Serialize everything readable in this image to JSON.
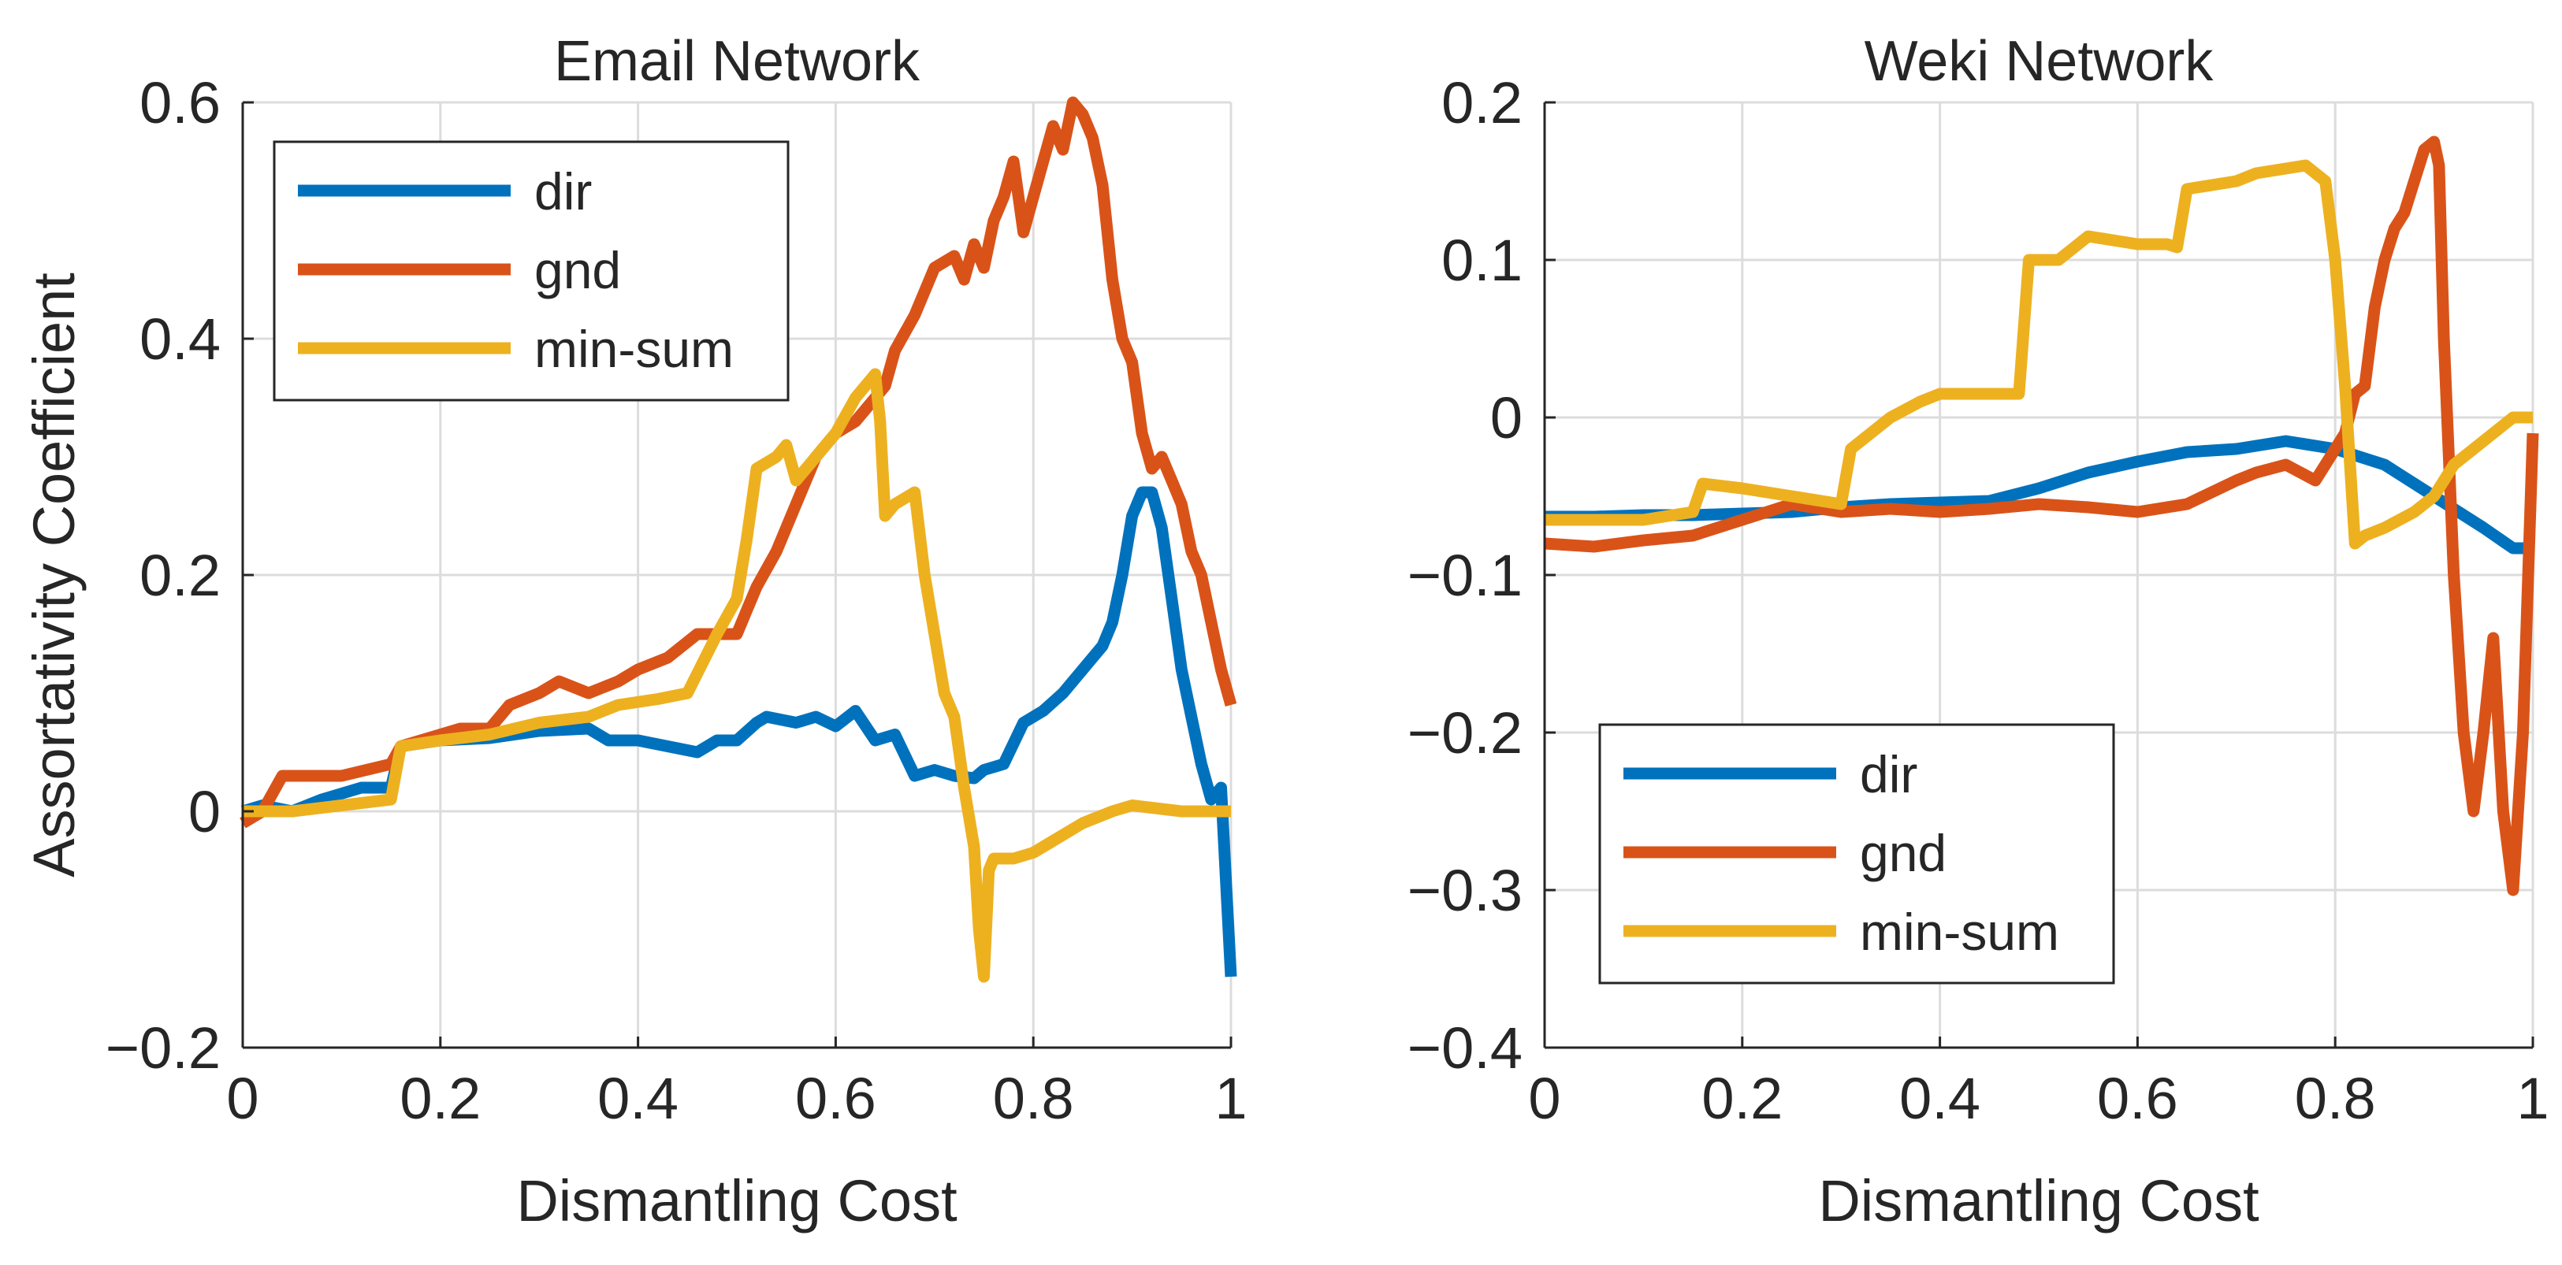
{
  "colors": {
    "dir": "#0072BD",
    "gnd": "#D95319",
    "min-sum": "#EDB120",
    "grid": "#dcdcdc",
    "axis": "#262626"
  },
  "chart_data": [
    {
      "type": "line",
      "title": "Email Network",
      "xlabel": "Dismantling Cost",
      "ylabel": "Assortativity Coefficient",
      "xlim": [
        0,
        1
      ],
      "ylim": [
        -0.2,
        0.6
      ],
      "xticks": [
        0,
        0.2,
        0.4,
        0.6,
        0.8,
        1
      ],
      "yticks": [
        -0.2,
        0,
        0.2,
        0.4,
        0.6
      ],
      "xtick_labels": [
        "0",
        "0.2",
        "0.4",
        "0.6",
        "0.8",
        "1"
      ],
      "ytick_labels": [
        "−0.2",
        "0",
        "0.2",
        "0.4",
        "0.6"
      ],
      "grid": true,
      "legend": "top-left",
      "series": [
        {
          "name": "dir",
          "key": "dir",
          "x": [
            0,
            0.02,
            0.05,
            0.08,
            0.1,
            0.12,
            0.15,
            0.16,
            0.2,
            0.25,
            0.3,
            0.35,
            0.37,
            0.4,
            0.43,
            0.46,
            0.48,
            0.5,
            0.52,
            0.53,
            0.56,
            0.58,
            0.6,
            0.62,
            0.64,
            0.66,
            0.68,
            0.7,
            0.72,
            0.74,
            0.75,
            0.77,
            0.79,
            0.81,
            0.83,
            0.85,
            0.87,
            0.88,
            0.89,
            0.9,
            0.91,
            0.92,
            0.93,
            0.94,
            0.95,
            0.96,
            0.97,
            0.98,
            0.99,
            1.0
          ],
          "values": [
            0,
            0.005,
            0,
            0.01,
            0.015,
            0.02,
            0.02,
            0.055,
            0.06,
            0.062,
            0.068,
            0.07,
            0.06,
            0.06,
            0.055,
            0.05,
            0.06,
            0.06,
            0.075,
            0.08,
            0.075,
            0.08,
            0.072,
            0.085,
            0.06,
            0.065,
            0.03,
            0.035,
            0.03,
            0.028,
            0.035,
            0.04,
            0.075,
            0.085,
            0.1,
            0.12,
            0.14,
            0.16,
            0.2,
            0.25,
            0.27,
            0.27,
            0.24,
            0.18,
            0.12,
            0.08,
            0.04,
            0.01,
            0.02,
            -0.14
          ]
        },
        {
          "name": "gnd",
          "key": "gnd",
          "x": [
            0,
            0.02,
            0.04,
            0.06,
            0.1,
            0.15,
            0.16,
            0.2,
            0.22,
            0.25,
            0.27,
            0.3,
            0.32,
            0.35,
            0.38,
            0.4,
            0.43,
            0.46,
            0.48,
            0.5,
            0.51,
            0.52,
            0.54,
            0.56,
            0.58,
            0.6,
            0.62,
            0.64,
            0.65,
            0.66,
            0.68,
            0.7,
            0.72,
            0.73,
            0.74,
            0.75,
            0.76,
            0.77,
            0.78,
            0.79,
            0.8,
            0.81,
            0.82,
            0.83,
            0.84,
            0.85,
            0.86,
            0.87,
            0.88,
            0.89,
            0.9,
            0.91,
            0.92,
            0.93,
            0.94,
            0.95,
            0.96,
            0.97,
            0.98,
            0.99,
            1.0
          ],
          "values": [
            -0.01,
            0,
            0.03,
            0.03,
            0.03,
            0.04,
            0.055,
            0.065,
            0.07,
            0.07,
            0.09,
            0.1,
            0.11,
            0.1,
            0.11,
            0.12,
            0.13,
            0.15,
            0.15,
            0.15,
            0.17,
            0.19,
            0.22,
            0.26,
            0.3,
            0.32,
            0.33,
            0.35,
            0.36,
            0.39,
            0.42,
            0.46,
            0.47,
            0.45,
            0.48,
            0.46,
            0.5,
            0.52,
            0.55,
            0.49,
            0.52,
            0.55,
            0.58,
            0.56,
            0.6,
            0.59,
            0.57,
            0.53,
            0.45,
            0.4,
            0.38,
            0.32,
            0.29,
            0.3,
            0.28,
            0.26,
            0.22,
            0.2,
            0.16,
            0.12,
            0.09
          ]
        },
        {
          "name": "min-sum",
          "key": "min-sum",
          "x": [
            0,
            0.05,
            0.1,
            0.15,
            0.16,
            0.2,
            0.25,
            0.3,
            0.35,
            0.38,
            0.42,
            0.45,
            0.48,
            0.5,
            0.51,
            0.52,
            0.54,
            0.55,
            0.56,
            0.58,
            0.6,
            0.62,
            0.64,
            0.645,
            0.65,
            0.66,
            0.68,
            0.69,
            0.7,
            0.71,
            0.72,
            0.73,
            0.74,
            0.745,
            0.75,
            0.755,
            0.76,
            0.77,
            0.78,
            0.8,
            0.82,
            0.85,
            0.88,
            0.9,
            0.95,
            1.0
          ],
          "values": [
            0,
            0,
            0.005,
            0.01,
            0.055,
            0.06,
            0.065,
            0.075,
            0.08,
            0.09,
            0.095,
            0.1,
            0.15,
            0.18,
            0.23,
            0.29,
            0.3,
            0.31,
            0.28,
            0.3,
            0.32,
            0.35,
            0.37,
            0.33,
            0.25,
            0.26,
            0.27,
            0.2,
            0.15,
            0.1,
            0.08,
            0.02,
            -0.03,
            -0.1,
            -0.14,
            -0.05,
            -0.04,
            -0.04,
            -0.04,
            -0.035,
            -0.025,
            -0.01,
            0,
            0.005,
            0,
            0
          ]
        }
      ]
    },
    {
      "type": "line",
      "title": "Weki Network",
      "xlabel": "Dismantling Cost",
      "ylabel": "",
      "xlim": [
        0,
        1
      ],
      "ylim": [
        -0.4,
        0.2
      ],
      "xticks": [
        0,
        0.2,
        0.4,
        0.6,
        0.8,
        1
      ],
      "yticks": [
        -0.4,
        -0.3,
        -0.2,
        -0.1,
        0,
        0.1,
        0.2
      ],
      "xtick_labels": [
        "0",
        "0.2",
        "0.4",
        "0.6",
        "0.8",
        "1"
      ],
      "ytick_labels": [
        "−0.4",
        "−0.3",
        "−0.2",
        "−0.1",
        "0",
        "0.1",
        "0.2"
      ],
      "grid": true,
      "legend": "bottom-left",
      "series": [
        {
          "name": "dir",
          "key": "dir",
          "x": [
            0,
            0.05,
            0.1,
            0.15,
            0.2,
            0.25,
            0.3,
            0.35,
            0.4,
            0.45,
            0.5,
            0.55,
            0.6,
            0.65,
            0.7,
            0.75,
            0.8,
            0.85,
            0.9,
            0.95,
            0.98,
            1.0
          ],
          "values": [
            -0.063,
            -0.063,
            -0.062,
            -0.062,
            -0.061,
            -0.06,
            -0.057,
            -0.055,
            -0.054,
            -0.053,
            -0.045,
            -0.035,
            -0.028,
            -0.022,
            -0.02,
            -0.015,
            -0.02,
            -0.03,
            -0.05,
            -0.07,
            -0.083,
            -0.083
          ]
        },
        {
          "name": "gnd",
          "key": "gnd",
          "x": [
            0,
            0.05,
            0.1,
            0.15,
            0.2,
            0.25,
            0.3,
            0.35,
            0.4,
            0.45,
            0.5,
            0.55,
            0.6,
            0.65,
            0.7,
            0.72,
            0.75,
            0.78,
            0.8,
            0.81,
            0.82,
            0.83,
            0.84,
            0.85,
            0.86,
            0.87,
            0.88,
            0.89,
            0.9,
            0.905,
            0.91,
            0.92,
            0.93,
            0.94,
            0.95,
            0.96,
            0.97,
            0.98,
            0.99,
            1.0
          ],
          "values": [
            -0.08,
            -0.082,
            -0.078,
            -0.075,
            -0.065,
            -0.055,
            -0.06,
            -0.058,
            -0.06,
            -0.058,
            -0.055,
            -0.057,
            -0.06,
            -0.055,
            -0.04,
            -0.035,
            -0.03,
            -0.04,
            -0.02,
            -0.01,
            0.015,
            0.02,
            0.07,
            0.1,
            0.12,
            0.13,
            0.15,
            0.17,
            0.175,
            0.16,
            0.05,
            -0.1,
            -0.2,
            -0.25,
            -0.2,
            -0.14,
            -0.25,
            -0.3,
            -0.2,
            -0.01
          ]
        },
        {
          "name": "min-sum",
          "key": "min-sum",
          "x": [
            0,
            0.05,
            0.1,
            0.15,
            0.16,
            0.2,
            0.25,
            0.3,
            0.31,
            0.33,
            0.35,
            0.38,
            0.4,
            0.45,
            0.48,
            0.49,
            0.52,
            0.55,
            0.58,
            0.6,
            0.63,
            0.64,
            0.65,
            0.7,
            0.72,
            0.75,
            0.77,
            0.79,
            0.8,
            0.81,
            0.82,
            0.83,
            0.85,
            0.88,
            0.9,
            0.92,
            0.95,
            0.98,
            1.0
          ],
          "values": [
            -0.065,
            -0.065,
            -0.065,
            -0.06,
            -0.042,
            -0.045,
            -0.05,
            -0.055,
            -0.02,
            -0.01,
            0,
            0.01,
            0.015,
            0.015,
            0.015,
            0.1,
            0.1,
            0.115,
            0.112,
            0.11,
            0.11,
            0.108,
            0.145,
            0.15,
            0.155,
            0.158,
            0.16,
            0.15,
            0.1,
            0.02,
            -0.08,
            -0.075,
            -0.07,
            -0.06,
            -0.05,
            -0.03,
            -0.015,
            0,
            0
          ]
        }
      ]
    }
  ]
}
